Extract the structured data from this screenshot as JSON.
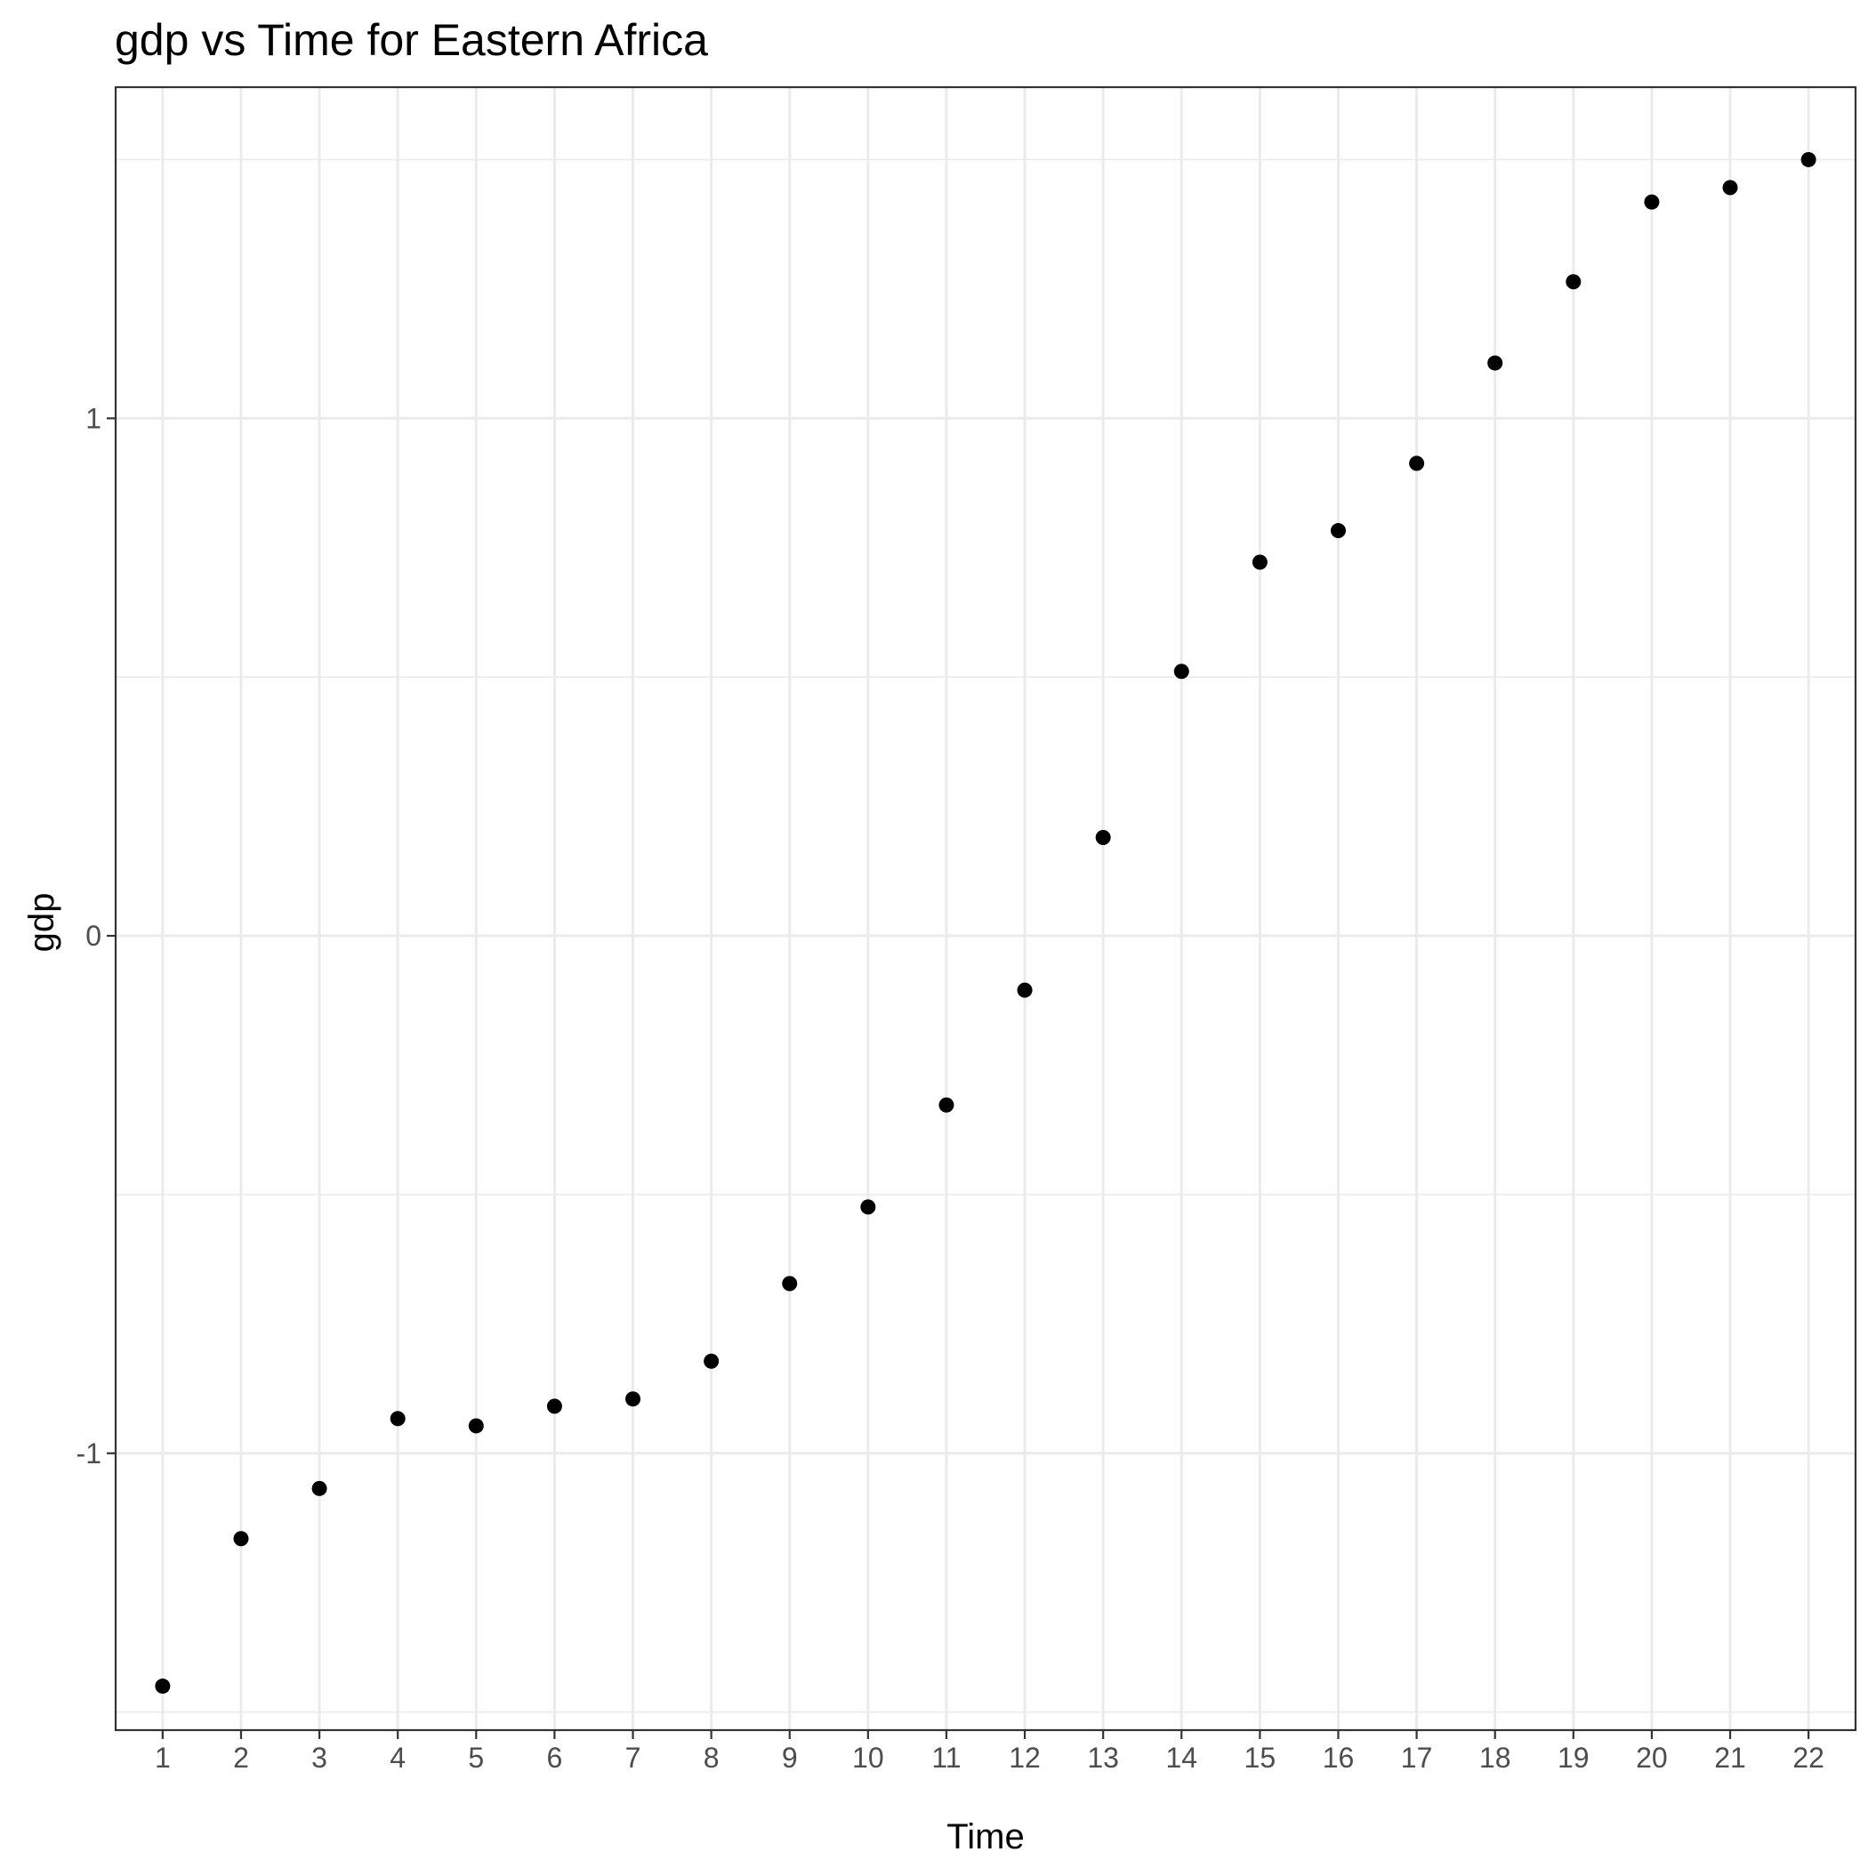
{
  "chart_data": {
    "type": "scatter",
    "title": "gdp  vs Time for Eastern Africa",
    "xlabel": "Time",
    "ylabel": "gdp",
    "x_tick_labels": [
      "1",
      "2",
      "3",
      "4",
      "5",
      "6",
      "7",
      "8",
      "9",
      "10",
      "11",
      "12",
      "13",
      "14",
      "15",
      "16",
      "17",
      "18",
      "19",
      "20",
      "21",
      "22"
    ],
    "y_tick_labels": [
      "-1",
      "0",
      "1"
    ],
    "y_tick_values": [
      -1,
      0,
      1
    ],
    "xlim": [
      0.4,
      22.6
    ],
    "ylim": [
      -1.535,
      1.64
    ],
    "grid": true,
    "legend": "none",
    "point_color": "#000000",
    "series": [
      {
        "x": [
          1,
          2,
          3,
          4,
          5,
          6,
          7,
          8,
          9,
          10,
          11,
          12,
          13,
          14,
          15,
          16,
          17,
          18,
          19,
          20,
          21,
          22
        ],
        "values": [
          -1.45,
          -1.165,
          -1.068,
          -0.933,
          -0.947,
          -0.909,
          -0.895,
          -0.822,
          -0.672,
          -0.524,
          -0.327,
          -0.105,
          0.19,
          0.511,
          0.722,
          0.783,
          0.913,
          1.107,
          1.264,
          1.418,
          1.446,
          1.5
        ]
      }
    ]
  }
}
